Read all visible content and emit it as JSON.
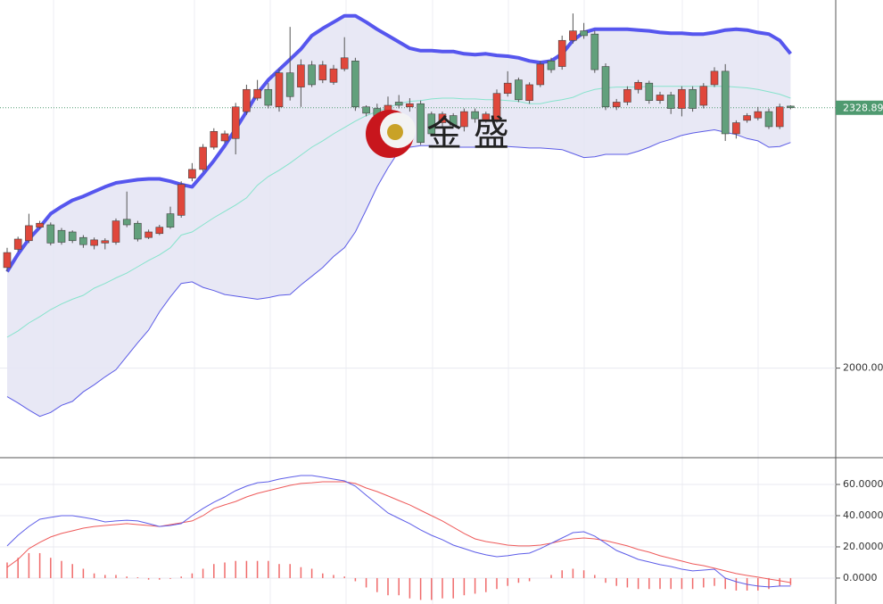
{
  "chart_data": [
    {
      "type": "candlestick",
      "open": [
        2127,
        2150,
        2161,
        2178,
        2181,
        2174,
        2172,
        2165,
        2155,
        2158,
        2159,
        2188,
        2183,
        2165,
        2170,
        2195,
        2193,
        2240,
        2251,
        2279,
        2287,
        2290,
        2324,
        2341,
        2352,
        2330,
        2373,
        2355,
        2383,
        2364,
        2361,
        2378,
        2388,
        2330,
        2328,
        2324,
        2336,
        2330,
        2334,
        2321,
        2310,
        2319,
        2305,
        2324,
        2313,
        2313,
        2347,
        2364,
        2338,
        2358,
        2388,
        2381,
        2414,
        2426,
        2422,
        2381,
        2330,
        2336,
        2352,
        2360,
        2338,
        2345,
        2328,
        2352,
        2332,
        2358,
        2375,
        2296,
        2313,
        2316,
        2324,
        2305,
        2331
      ],
      "high": [
        2152,
        2166,
        2195,
        2186,
        2184,
        2177,
        2174,
        2168,
        2165,
        2164,
        2189,
        2223,
        2186,
        2175,
        2181,
        2204,
        2236,
        2259,
        2283,
        2303,
        2300,
        2335,
        2358,
        2364,
        2360,
        2378,
        2431,
        2390,
        2388,
        2388,
        2383,
        2418,
        2392,
        2332,
        2334,
        2343,
        2345,
        2341,
        2338,
        2324,
        2324,
        2322,
        2328,
        2328,
        2324,
        2352,
        2375,
        2367,
        2361,
        2388,
        2392,
        2420,
        2448,
        2436,
        2426,
        2385,
        2340,
        2356,
        2364,
        2363,
        2349,
        2349,
        2356,
        2356,
        2360,
        2380,
        2384,
        2313,
        2322,
        2330,
        2328,
        2334,
        2332
      ],
      "low": [
        2122,
        2147,
        2158,
        2176,
        2155,
        2156,
        2158,
        2152,
        2150,
        2150,
        2156,
        2178,
        2160,
        2163,
        2168,
        2176,
        2190,
        2236,
        2248,
        2276,
        2284,
        2270,
        2320,
        2338,
        2328,
        2324,
        2338,
        2330,
        2355,
        2360,
        2358,
        2375,
        2325,
        2318,
        2313,
        2321,
        2328,
        2324,
        2282,
        2293,
        2305,
        2303,
        2299,
        2310,
        2310,
        2310,
        2343,
        2336,
        2334,
        2355,
        2373,
        2377,
        2410,
        2416,
        2373,
        2326,
        2326,
        2332,
        2347,
        2334,
        2334,
        2321,
        2318,
        2324,
        2328,
        2355,
        2287,
        2290,
        2310,
        2313,
        2302,
        2302,
        2327
      ],
      "close": [
        2146,
        2163,
        2180,
        2183,
        2158,
        2159,
        2161,
        2156,
        2162,
        2161,
        2186,
        2181,
        2163,
        2172,
        2178,
        2178,
        2232,
        2251,
        2279,
        2299,
        2296,
        2330,
        2352,
        2352,
        2332,
        2373,
        2343,
        2383,
        2358,
        2383,
        2378,
        2392,
        2330,
        2322,
        2319,
        2332,
        2332,
        2334,
        2285,
        2296,
        2321,
        2307,
        2324,
        2315,
        2321,
        2347,
        2360,
        2339,
        2358,
        2384,
        2377,
        2414,
        2426,
        2420,
        2377,
        2330,
        2336,
        2352,
        2361,
        2338,
        2345,
        2328,
        2352,
        2328,
        2356,
        2375,
        2296,
        2310,
        2319,
        2324,
        2305,
        2330,
        2328.89
      ],
      "upper": [
        2122,
        2144,
        2163,
        2178,
        2195,
        2204,
        2212,
        2217,
        2223,
        2229,
        2234,
        2236,
        2238,
        2239,
        2239,
        2236,
        2232,
        2229,
        2245,
        2262,
        2281,
        2302,
        2324,
        2347,
        2364,
        2377,
        2390,
        2403,
        2420,
        2429,
        2437,
        2445,
        2445,
        2437,
        2428,
        2420,
        2412,
        2404,
        2401,
        2401,
        2400,
        2400,
        2397,
        2396,
        2397,
        2395,
        2394,
        2392,
        2388,
        2386,
        2388,
        2397,
        2414,
        2424,
        2428,
        2428,
        2428,
        2428,
        2427,
        2426,
        2424,
        2423,
        2423,
        2422,
        2422,
        2424,
        2427,
        2428,
        2427,
        2424,
        2422,
        2414,
        2397
      ],
      "middle": [
        2039,
        2047,
        2057,
        2065,
        2074,
        2081,
        2087,
        2092,
        2101,
        2107,
        2114,
        2120,
        2128,
        2136,
        2143,
        2152,
        2168,
        2172,
        2181,
        2190,
        2198,
        2206,
        2215,
        2231,
        2242,
        2250,
        2259,
        2269,
        2279,
        2287,
        2296,
        2304,
        2312,
        2319,
        2324,
        2329,
        2334,
        2337,
        2338,
        2340,
        2341,
        2341,
        2340,
        2340,
        2339,
        2339,
        2338,
        2337,
        2334,
        2334,
        2337,
        2339,
        2342,
        2348,
        2352,
        2354,
        2355,
        2355,
        2355,
        2356,
        2356,
        2356,
        2356,
        2356,
        2356,
        2356,
        2356,
        2355,
        2354,
        2352,
        2349,
        2346,
        2341
      ],
      "lower": [
        1964,
        1956,
        1947,
        1939,
        1944,
        1953,
        1958,
        1970,
        1979,
        1989,
        1998,
        2015,
        2032,
        2048,
        2071,
        2090,
        2107,
        2109,
        2102,
        2098,
        2093,
        2091,
        2089,
        2087,
        2089,
        2092,
        2093,
        2105,
        2116,
        2127,
        2141,
        2152,
        2172,
        2200,
        2229,
        2253,
        2274,
        2279,
        2281,
        2281,
        2280,
        2279,
        2279,
        2279,
        2280,
        2281,
        2280,
        2279,
        2278,
        2278,
        2277,
        2276,
        2271,
        2266,
        2267,
        2270,
        2270,
        2270,
        2274,
        2279,
        2285,
        2289,
        2294,
        2297,
        2299,
        2301,
        2298,
        2295,
        2290,
        2287,
        2279,
        2280,
        2285
      ],
      "colors": {
        "up": "#e0473b",
        "down": "#62a07c",
        "upper": "#5656ee",
        "middle": "#86e3cc",
        "lower": "#5b5be6",
        "band_fill": "#e4e4f3",
        "last_price": "#4f9a70"
      },
      "ylim": [
        1888,
        2465
      ],
      "yticks": [
        {
          "value": 2000,
          "label": "2000.00"
        }
      ],
      "last_price": 2328.89,
      "watermark": "金 盛",
      "grid": true
    },
    {
      "type": "macd",
      "dif": [
        20.6,
        27.4,
        33.1,
        37.7,
        38.9,
        40,
        40,
        38.9,
        37.7,
        36,
        36.6,
        37.1,
        36.6,
        34.9,
        33.1,
        33.7,
        34.9,
        40,
        44.6,
        48.6,
        52,
        56,
        58.9,
        61.1,
        61.7,
        63.4,
        64.6,
        65.7,
        65.7,
        64.6,
        63.4,
        62.3,
        58.9,
        53.1,
        47.4,
        41.7,
        38.3,
        34.9,
        30.9,
        27.4,
        24.6,
        21.1,
        18.9,
        16.6,
        14.9,
        13.7,
        14.3,
        15.4,
        16,
        18.9,
        22.3,
        25.7,
        29.1,
        29.7,
        26.9,
        22.3,
        17.7,
        14.9,
        12,
        10.3,
        8.6,
        7.4,
        5.7,
        4.6,
        5.1,
        5.7,
        0,
        -2.3,
        -4,
        -5.1,
        -5.7,
        -5.1,
        -5.1
      ],
      "dea": [
        6.9,
        12,
        18.9,
        22.9,
        26.3,
        28.6,
        30.3,
        32,
        33.1,
        33.7,
        34.3,
        34.9,
        34.3,
        33.7,
        33.1,
        34.3,
        35.4,
        36.6,
        40,
        44.6,
        46.9,
        49.1,
        52,
        54.3,
        56,
        57.7,
        59.4,
        60.6,
        61.1,
        61.7,
        61.7,
        61.7,
        60.6,
        57.7,
        55.4,
        52.6,
        49.7,
        46.9,
        43.4,
        40,
        36.6,
        32.6,
        28.6,
        25.1,
        23.4,
        22.3,
        21.1,
        20.6,
        20.6,
        21.1,
        22.3,
        24,
        25.1,
        25.7,
        25.1,
        24,
        22.3,
        20.6,
        18.3,
        16.6,
        14.3,
        12.6,
        10.9,
        9.1,
        8,
        6.3,
        4.6,
        2.9,
        1.7,
        0.6,
        -0.6,
        -1.7,
        -2.9
      ],
      "hist": [
        10,
        13,
        16,
        16,
        13,
        11,
        9,
        6,
        3,
        2,
        2,
        1,
        0.5,
        -1,
        -1,
        -0.5,
        1,
        3,
        6,
        9,
        10,
        11,
        11,
        11,
        11,
        9,
        9,
        7,
        6,
        3,
        2,
        1,
        -2,
        -6,
        -9,
        -11,
        -11,
        -13,
        -14,
        -14,
        -13,
        -13,
        -11,
        -10,
        -9,
        -7,
        -5,
        -3,
        -2,
        0,
        2,
        5,
        6,
        5,
        2,
        -3,
        -5,
        -6,
        -7,
        -7,
        -7,
        -7,
        -7,
        -7,
        -6,
        -5,
        -7,
        -8,
        -8,
        -8,
        -7,
        -5,
        -4.5
      ],
      "colors": {
        "dif": "#5d5de8",
        "dea": "#ee5a5a",
        "hist": "#f06a6a"
      },
      "ylim": [
        -16.6,
        76
      ],
      "yticks": [
        {
          "value": 0,
          "label": "0.0000"
        },
        {
          "value": 20,
          "label": "20.0000"
        },
        {
          "value": 40,
          "label": "40.0000"
        },
        {
          "value": 60,
          "label": "60.0000"
        }
      ],
      "grid": true
    }
  ]
}
